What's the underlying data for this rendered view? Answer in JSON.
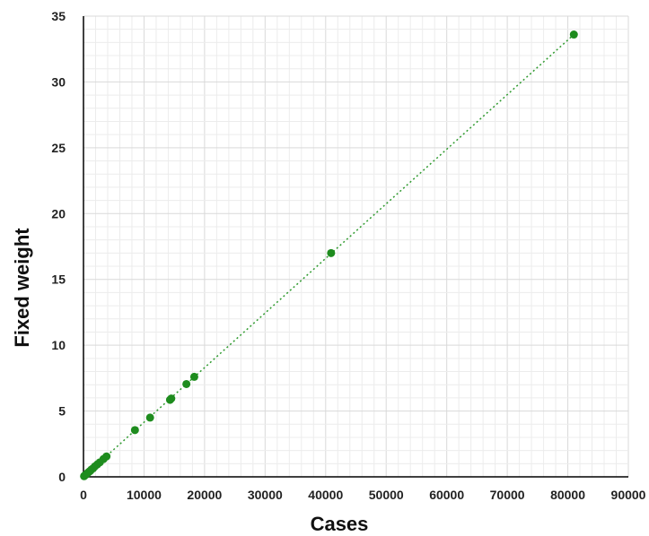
{
  "chart_data": {
    "type": "scatter",
    "title": "",
    "xlabel": "Cases",
    "ylabel": "Fixed weight",
    "xlim": [
      0,
      90000
    ],
    "ylim": [
      0,
      35
    ],
    "x_ticks": [
      "0",
      "10000",
      "20000",
      "30000",
      "40000",
      "50000",
      "60000",
      "70000",
      "80000",
      "90000"
    ],
    "y_ticks": [
      "0",
      "5",
      "10",
      "15",
      "20",
      "25",
      "30",
      "35"
    ],
    "grid": true,
    "legend": "none",
    "marker_color": "#1e8c1e",
    "trendline": {
      "style": "dotted",
      "color": "#2e9a2e",
      "from": [
        0,
        0
      ],
      "to": [
        81000,
        33.6
      ]
    },
    "points": [
      {
        "x": 100,
        "y": 0.05
      },
      {
        "x": 200,
        "y": 0.1
      },
      {
        "x": 350,
        "y": 0.15
      },
      {
        "x": 500,
        "y": 0.2
      },
      {
        "x": 700,
        "y": 0.3
      },
      {
        "x": 900,
        "y": 0.38
      },
      {
        "x": 1100,
        "y": 0.45
      },
      {
        "x": 1300,
        "y": 0.55
      },
      {
        "x": 1600,
        "y": 0.65
      },
      {
        "x": 1900,
        "y": 0.8
      },
      {
        "x": 2300,
        "y": 0.95
      },
      {
        "x": 2700,
        "y": 1.1
      },
      {
        "x": 3300,
        "y": 1.35
      },
      {
        "x": 3800,
        "y": 1.55
      },
      {
        "x": 8500,
        "y": 3.55
      },
      {
        "x": 11000,
        "y": 4.5
      },
      {
        "x": 14300,
        "y": 5.85
      },
      {
        "x": 14500,
        "y": 5.95
      },
      {
        "x": 17000,
        "y": 7.05
      },
      {
        "x": 18300,
        "y": 7.6
      },
      {
        "x": 40900,
        "y": 17.0
      },
      {
        "x": 81000,
        "y": 33.6
      }
    ]
  }
}
